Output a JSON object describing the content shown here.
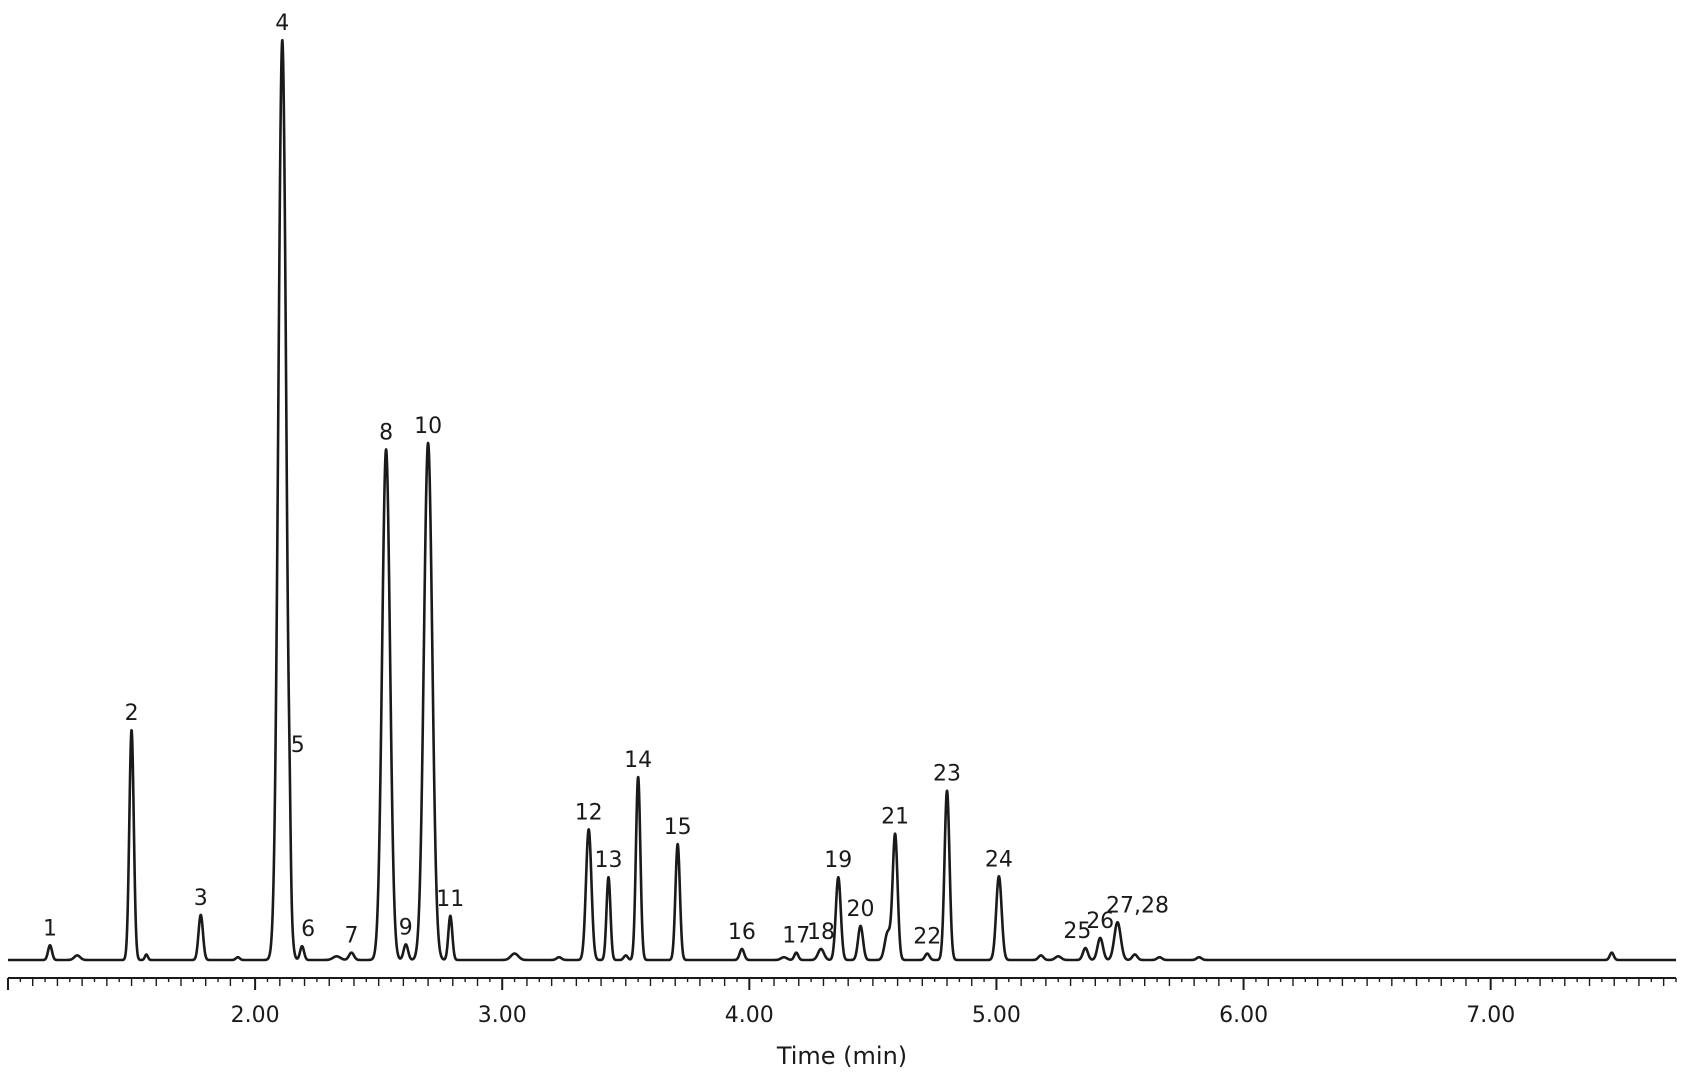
{
  "chart_data": {
    "type": "line",
    "title": "",
    "xlabel": "Time (min)",
    "ylabel": "",
    "xlim": [
      1.0,
      7.75
    ],
    "ylim": [
      0,
      100
    ],
    "grid": false,
    "legend": "none",
    "line_color": "#1a1a1a",
    "x_ticks": [
      2.0,
      3.0,
      4.0,
      5.0,
      6.0,
      7.0
    ],
    "x_tick_labels": [
      "2.00",
      "3.00",
      "4.00",
      "5.00",
      "6.00",
      "7.00"
    ],
    "x_minor_tick_step": 0.05,
    "peaks": [
      {
        "label": "1",
        "x": 1.17,
        "y": 1.6,
        "w": 0.008
      },
      {
        "label": "2",
        "x": 1.5,
        "y": 25.0,
        "w": 0.009
      },
      {
        "label": "3",
        "x": 1.78,
        "y": 4.9,
        "w": 0.009
      },
      {
        "label": "4",
        "x": 2.11,
        "y": 100.0,
        "w": 0.016
      },
      {
        "label": "5",
        "x": 2.14,
        "y": 4.3,
        "w": 0.004
      },
      {
        "label": "6",
        "x": 2.19,
        "y": 1.5,
        "w": 0.008
      },
      {
        "label": "7",
        "x": 2.39,
        "y": 0.8,
        "w": 0.01
      },
      {
        "label": "8",
        "x": 2.53,
        "y": 55.5,
        "w": 0.016
      },
      {
        "label": "9",
        "x": 2.61,
        "y": 1.7,
        "w": 0.009
      },
      {
        "label": "10",
        "x": 2.7,
        "y": 56.2,
        "w": 0.017
      },
      {
        "label": "11",
        "x": 2.79,
        "y": 4.8,
        "w": 0.008
      },
      {
        "label": "12",
        "x": 3.35,
        "y": 14.2,
        "w": 0.011
      },
      {
        "label": "13",
        "x": 3.43,
        "y": 9.0,
        "w": 0.008
      },
      {
        "label": "14",
        "x": 3.55,
        "y": 19.9,
        "w": 0.009
      },
      {
        "label": "15",
        "x": 3.71,
        "y": 12.6,
        "w": 0.009
      },
      {
        "label": "16",
        "x": 3.97,
        "y": 1.2,
        "w": 0.009
      },
      {
        "label": "17",
        "x": 4.19,
        "y": 0.8,
        "w": 0.008
      },
      {
        "label": "18",
        "x": 4.29,
        "y": 1.2,
        "w": 0.012
      },
      {
        "label": "19",
        "x": 4.36,
        "y": 9.0,
        "w": 0.01
      },
      {
        "label": "20",
        "x": 4.45,
        "y": 3.7,
        "w": 0.01
      },
      {
        "label": "21",
        "x": 4.59,
        "y": 13.6,
        "w": 0.01
      },
      {
        "label": "22",
        "x": 4.72,
        "y": 0.7,
        "w": 0.009
      },
      {
        "label": "23",
        "x": 4.8,
        "y": 18.4,
        "w": 0.01
      },
      {
        "label": "24",
        "x": 5.01,
        "y": 9.1,
        "w": 0.011
      },
      {
        "label": "25",
        "x": 5.36,
        "y": 1.3,
        "w": 0.01
      },
      {
        "label": "26",
        "x": 5.42,
        "y": 2.4,
        "w": 0.011
      },
      {
        "label": "27,28",
        "x": 5.49,
        "y": 4.1,
        "w": 0.013
      }
    ],
    "minor_bumps": [
      {
        "x": 1.28,
        "y": 0.5,
        "w": 0.012
      },
      {
        "x": 1.56,
        "y": 0.6,
        "w": 0.006
      },
      {
        "x": 1.93,
        "y": 0.3,
        "w": 0.008
      },
      {
        "x": 2.33,
        "y": 0.4,
        "w": 0.015
      },
      {
        "x": 3.05,
        "y": 0.7,
        "w": 0.015
      },
      {
        "x": 3.23,
        "y": 0.3,
        "w": 0.01
      },
      {
        "x": 3.5,
        "y": 0.5,
        "w": 0.008
      },
      {
        "x": 4.14,
        "y": 0.3,
        "w": 0.012
      },
      {
        "x": 4.56,
        "y": 3.0,
        "w": 0.012
      },
      {
        "x": 5.18,
        "y": 0.5,
        "w": 0.01
      },
      {
        "x": 5.25,
        "y": 0.4,
        "w": 0.012
      },
      {
        "x": 5.56,
        "y": 0.6,
        "w": 0.01
      },
      {
        "x": 5.66,
        "y": 0.3,
        "w": 0.01
      },
      {
        "x": 5.82,
        "y": 0.3,
        "w": 0.01
      },
      {
        "x": 7.49,
        "y": 0.8,
        "w": 0.008
      }
    ]
  }
}
